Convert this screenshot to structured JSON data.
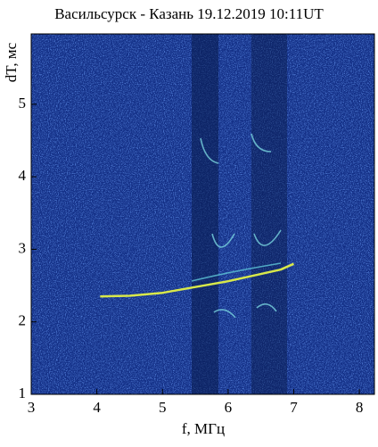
{
  "chart_data": {
    "type": "line",
    "title": "Васильсурск - Казань 19.12.2019 10:11UT",
    "xlabel": "f, МГц",
    "ylabel": "dT, мс",
    "x": [
      4.05,
      4.5,
      5.0,
      5.5,
      6.0,
      6.5,
      6.8,
      7.0
    ],
    "values": [
      2.35,
      2.36,
      2.4,
      2.48,
      2.56,
      2.66,
      2.72,
      2.8
    ],
    "color": "#d8e84a",
    "xlim": [
      3,
      8.23
    ],
    "ylim": [
      1,
      5.97
    ],
    "xticks": [
      3,
      4,
      5,
      6,
      7,
      8
    ],
    "yticks": [
      1,
      2,
      3,
      4,
      5
    ]
  }
}
